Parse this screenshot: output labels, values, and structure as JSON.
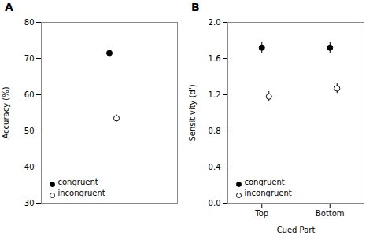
{
  "chart_data": [
    {
      "type": "dot",
      "title": "A",
      "ylabel": "Accuracy (%)",
      "categories": [
        null
      ],
      "series": [
        {
          "name": "congruent",
          "color": "black",
          "marker": "filled",
          "values": [
            71.5
          ],
          "errors": [
            0.8
          ]
        },
        {
          "name": "incongruent",
          "color": "black",
          "marker": "open",
          "values": [
            53.5
          ],
          "errors": [
            1.0
          ]
        }
      ],
      "ylim": [
        30,
        80
      ],
      "yticks": [
        30,
        40,
        50,
        60,
        70,
        80
      ],
      "tick_labels": "y",
      "legend": "lower left"
    },
    {
      "type": "dot",
      "title": "B",
      "ylabel": "Sensitivity (d')",
      "xlabel": "Cued Part",
      "categories": [
        "Top",
        "Bottom"
      ],
      "series": [
        {
          "name": "congruent",
          "color": "black",
          "marker": "filled",
          "values": [
            1.72,
            1.72
          ],
          "errors": [
            0.06,
            0.06
          ]
        },
        {
          "name": "incongruent",
          "color": "black",
          "marker": "open",
          "values": [
            1.18,
            1.27
          ],
          "errors": [
            0.055,
            0.055
          ]
        }
      ],
      "ylim": [
        0,
        2.0
      ],
      "yticks": [
        {
          "value": 0,
          "label": "0.0"
        },
        0.4,
        0.8,
        1.2,
        1.6,
        {
          "value": 2.0,
          "label": "2.0"
        }
      ],
      "legend": "lower left"
    }
  ]
}
